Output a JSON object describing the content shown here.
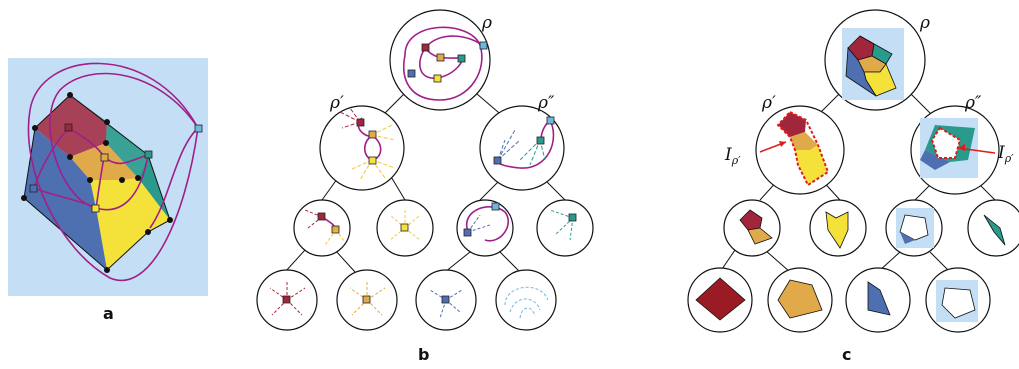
{
  "panels": {
    "a": {
      "label": "a"
    },
    "b": {
      "label": "b"
    },
    "c": {
      "label": "c"
    }
  },
  "node_labels": {
    "rho": "ρ",
    "rho_prime": "ρ′",
    "rho_double_prime": "ρ″",
    "rho_c": "ρ",
    "rho_prime_c": "ρ′",
    "rho_double_prime_c": "ρ″"
  },
  "annotations": {
    "i_rho_prime_left": "I",
    "i_rho_prime_left_sub": "ρ′",
    "i_rho_prime_right": "I",
    "i_rho_prime_right_sub": "ρ′"
  },
  "colors": {
    "red": "#a1263b",
    "orange": "#e0a94a",
    "yellow": "#f4e23a",
    "teal": "#2a9a8c",
    "blue": "#4f70b0",
    "light_blue": "#c4dff5",
    "purple": "#a0208a"
  }
}
